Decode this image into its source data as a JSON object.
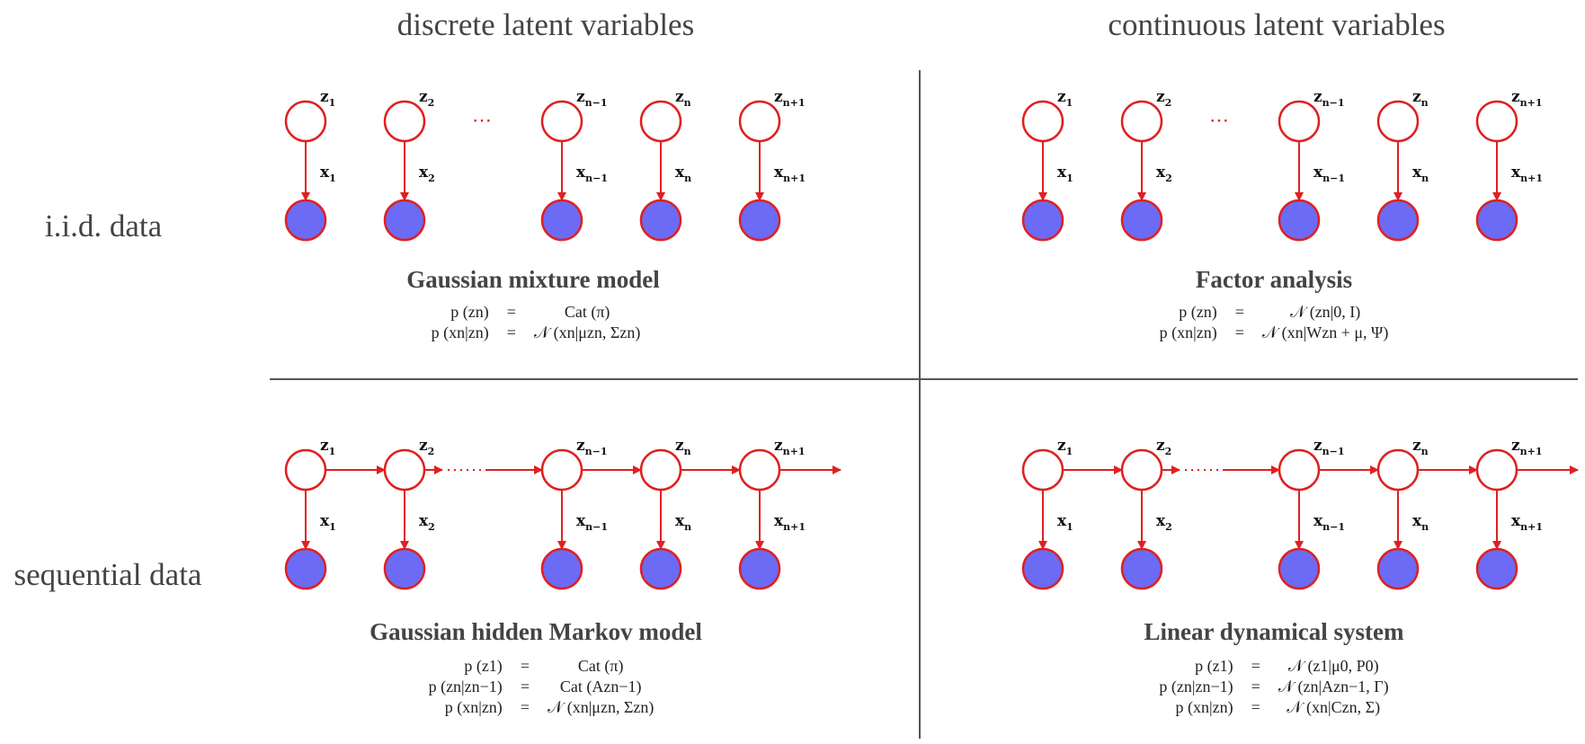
{
  "columns": {
    "left": "discrete latent variables",
    "right": "continuous latent variables"
  },
  "rows": {
    "top": "i.i.d. data",
    "bottom": "sequential data"
  },
  "node_labels": {
    "z": [
      "z1",
      "z2",
      "zn−1",
      "zn",
      "zn+1"
    ],
    "x": [
      "x1",
      "x2",
      "xn−1",
      "xn",
      "xn+1"
    ],
    "ellipsis": "⋯"
  },
  "colors": {
    "latent_stroke": "#e02020",
    "observed_fill": "#6b6bf5",
    "edge": "#e02020",
    "text": "#444444"
  },
  "panels": {
    "gmm": {
      "title": "Gaussian mixture model",
      "equations": [
        {
          "lhs": "p (zn)",
          "rel": "=",
          "rhs": "Cat (π)"
        },
        {
          "lhs": "p (xn|zn)",
          "rel": "=",
          "rhs": "𝒩 (xn|μzn, Σzn)"
        }
      ]
    },
    "fa": {
      "title": "Factor analysis",
      "equations": [
        {
          "lhs": "p (zn)",
          "rel": "=",
          "rhs": "𝒩 (zn|0, I)"
        },
        {
          "lhs": "p (xn|zn)",
          "rel": "=",
          "rhs": "𝒩 (xn|Wzn + μ, Ψ)"
        }
      ]
    },
    "hmm": {
      "title": "Gaussian hidden Markov model",
      "equations": [
        {
          "lhs": "p (z1)",
          "rel": "=",
          "rhs": "Cat (π)"
        },
        {
          "lhs": "p (zn|zn−1)",
          "rel": "=",
          "rhs": "Cat (Azn−1)"
        },
        {
          "lhs": "p (xn|zn)",
          "rel": "=",
          "rhs": "𝒩 (xn|μzn, Σzn)"
        }
      ]
    },
    "lds": {
      "title": "Linear dynamical system",
      "equations": [
        {
          "lhs": "p (z1)",
          "rel": "=",
          "rhs": "𝒩 (z1|μ0, P0)"
        },
        {
          "lhs": "p (zn|zn−1)",
          "rel": "=",
          "rhs": "𝒩 (zn|Azn−1, Γ)"
        },
        {
          "lhs": "p (xn|zn)",
          "rel": "=",
          "rhs": "𝒩 (xn|Czn, Σ)"
        }
      ]
    }
  }
}
